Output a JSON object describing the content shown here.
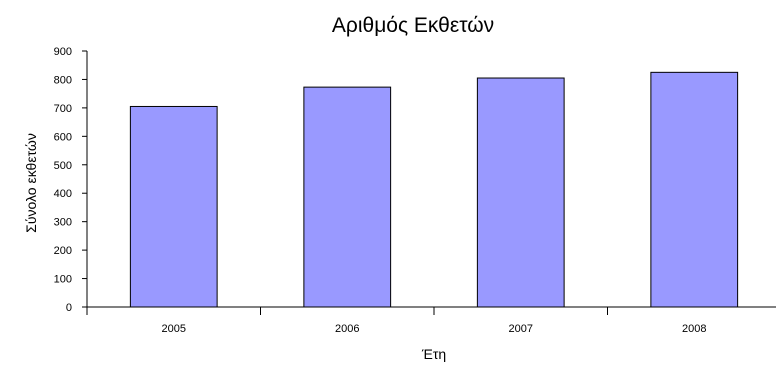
{
  "chart_data": {
    "type": "bar",
    "title": "Αριθμός Εκθετών",
    "xlabel": "Έτη",
    "ylabel": "Σύνολο εκθετών",
    "categories": [
      "2005",
      "2006",
      "2007",
      "2008"
    ],
    "values": [
      705,
      773,
      805,
      825
    ],
    "ylim": [
      0,
      900
    ],
    "yticks": [
      0,
      100,
      200,
      300,
      400,
      500,
      600,
      700,
      800,
      900
    ],
    "grid": false,
    "legend": "none",
    "colors": {
      "bar_fill": "#9999ff",
      "bar_stroke": "#000000",
      "axis": "#000000"
    }
  }
}
